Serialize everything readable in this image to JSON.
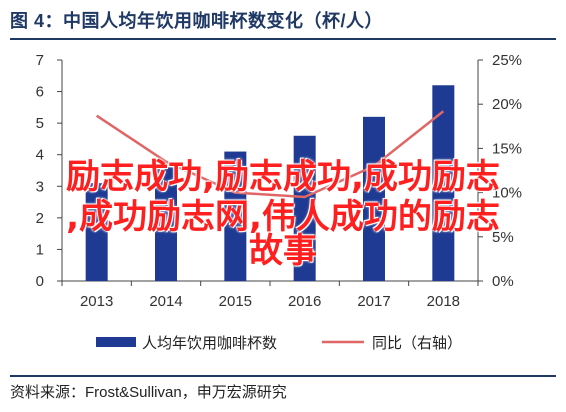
{
  "figure": {
    "title": "图 4：中国人均年饮用咖啡杯数变化（杯/人）",
    "source": "资料来源：Frost&Sullivan，申万宏源研究"
  },
  "overlay": {
    "line1": "励志成功,励志成功,成功励志",
    "line2": ",成功励志网,伟人成功的励志",
    "line3": "故事"
  },
  "chart_data": {
    "type": "bar",
    "categories": [
      "2013",
      "2014",
      "2015",
      "2016",
      "2017",
      "2018"
    ],
    "series": [
      {
        "name": "人均年饮用咖啡杯数",
        "type": "bar",
        "axis": "left",
        "values": [
          3.1,
          3.6,
          4.1,
          4.6,
          5.2,
          6.2
        ]
      },
      {
        "name": "同比（右轴）",
        "type": "line",
        "axis": "right",
        "values": [
          18.7,
          13.5,
          10.0,
          9.5,
          13.0,
          19.2
        ]
      }
    ],
    "y_left": {
      "min": 0,
      "max": 7,
      "ticks": [
        "0",
        "1",
        "2",
        "3",
        "4",
        "5",
        "6",
        "7"
      ]
    },
    "y_right": {
      "min": 0,
      "max": 25,
      "ticks": [
        "0%",
        "5%",
        "10%",
        "15%",
        "20%",
        "25%"
      ]
    },
    "legend_position": "bottom-center",
    "colors": {
      "bar": "#1f3a93",
      "line": "#e06666",
      "title": "#1f3864"
    }
  }
}
